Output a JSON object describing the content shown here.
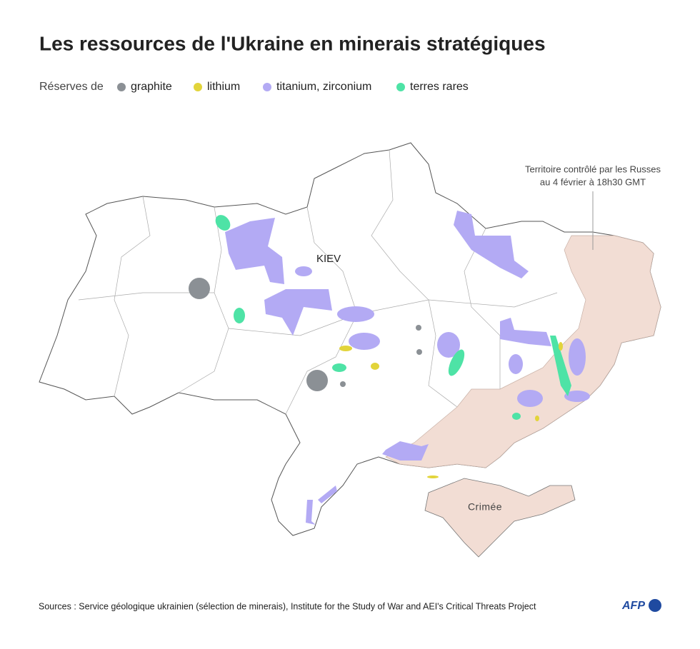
{
  "title": "Les ressources de l'Ukraine en minerais stratégiques",
  "legend": {
    "label": "Réserves de",
    "items": [
      {
        "name": "graphite",
        "color": "#8b9095"
      },
      {
        "name": "lithium",
        "color": "#e2d43a"
      },
      {
        "name": "titanium, zirconium",
        "color": "#b3aaf4"
      },
      {
        "name": "terres rares",
        "color": "#4ee3a6"
      }
    ]
  },
  "annotation": [
    "Territoire contrôlé par les Russes",
    "au 4 février à 18h30 GMT"
  ],
  "labels": {
    "capital": "KIEV",
    "crimea": "Crimée"
  },
  "sources": "Sources : Service géologique ukrainien (sélection de minerais), Institute for the Study of War and AEI's Critical Threats Project",
  "logo": "AFP"
}
